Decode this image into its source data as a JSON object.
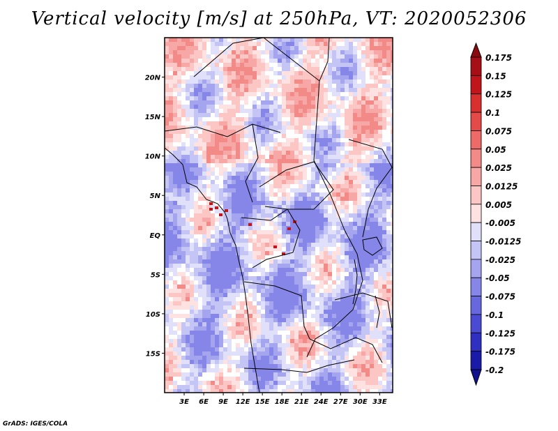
{
  "title": "Vertical velocity [m/s] at 250hPa, VT: 2020052306",
  "credit": "GrADS: IGES/COLA",
  "chart_data": {
    "type": "heatmap",
    "title": "Vertical velocity [m/s] at 250hPa, VT: 2020052306",
    "variable": "Vertical velocity",
    "units": "m/s",
    "level": "250hPa",
    "valid_time": "2020052306",
    "xlabel": "",
    "ylabel": "",
    "xlim": [
      0,
      35
    ],
    "ylim": [
      -20,
      25
    ],
    "x_ticks": [
      {
        "value": 3,
        "label": "3E"
      },
      {
        "value": 6,
        "label": "6E"
      },
      {
        "value": 9,
        "label": "9E"
      },
      {
        "value": 12,
        "label": "12E"
      },
      {
        "value": 15,
        "label": "15E"
      },
      {
        "value": 18,
        "label": "18E"
      },
      {
        "value": 21,
        "label": "21E"
      },
      {
        "value": 24,
        "label": "24E"
      },
      {
        "value": 27,
        "label": "27E"
      },
      {
        "value": 30,
        "label": "30E"
      },
      {
        "value": 33,
        "label": "33E"
      }
    ],
    "y_ticks": [
      {
        "value": 20,
        "label": "20N"
      },
      {
        "value": 15,
        "label": "15N"
      },
      {
        "value": 10,
        "label": "10N"
      },
      {
        "value": 5,
        "label": "5N"
      },
      {
        "value": 0,
        "label": "EQ"
      },
      {
        "value": -5,
        "label": "5S"
      },
      {
        "value": -10,
        "label": "10S"
      },
      {
        "value": -15,
        "label": "15S"
      }
    ],
    "colorbar": {
      "placement": "right",
      "levels": [
        {
          "label": "0.175",
          "color": "#a50f15"
        },
        {
          "label": "0.15",
          "color": "#c0151b"
        },
        {
          "label": "0.125",
          "color": "#d7302f"
        },
        {
          "label": "0.1",
          "color": "#e34a48"
        },
        {
          "label": "0.075",
          "color": "#ec6b68"
        },
        {
          "label": "0.05",
          "color": "#f28a88"
        },
        {
          "label": "0.025",
          "color": "#f7a8a6"
        },
        {
          "label": "0.0125",
          "color": "#fbc6c4"
        },
        {
          "label": "0.005",
          "color": "#fde2e1"
        },
        {
          "label": "-0.005",
          "color": "#ffffff"
        },
        {
          "label": "-0.0125",
          "color": "#e0e0fb"
        },
        {
          "label": "-0.025",
          "color": "#c4c4f5"
        },
        {
          "label": "-0.05",
          "color": "#a5a5ef"
        },
        {
          "label": "-0.075",
          "color": "#8686e8"
        },
        {
          "label": "-0.1",
          "color": "#6868de"
        },
        {
          "label": "-0.125",
          "color": "#4a4ad2"
        },
        {
          "label": "-0.175",
          "color": "#2f2fc0"
        },
        {
          "label": "-0.2",
          "color": "#1a1aa8"
        }
      ],
      "top_color": "#8b0a10",
      "bottom_color": "#12128e"
    }
  }
}
